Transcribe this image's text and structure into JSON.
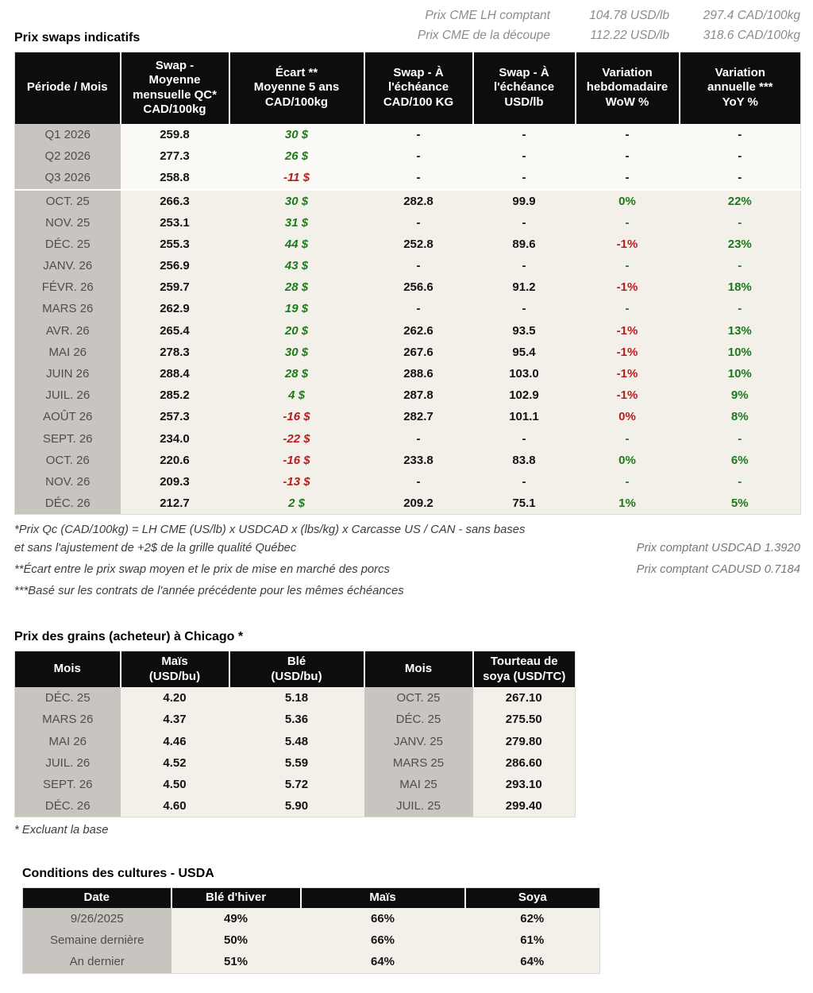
{
  "colors": {
    "green": "#1c7a1c",
    "red": "#b81d1d",
    "header_bg": "#0d0d0d",
    "header_fg": "#ffffff",
    "label_bg": "#c8c5c0",
    "label_fg": "#4e4e4e",
    "cell_bg": "#f3f0ea",
    "cell_bg_quarter": "#faf9f6",
    "muted": "#8c8c8c",
    "note": "#3c3c3c"
  },
  "cme_header": {
    "lines": [
      {
        "label": "Prix CME LH comptant",
        "usd": "104.78 USD/lb",
        "cad": "297.4 CAD/100kg"
      },
      {
        "label": "Prix CME de la découpe",
        "usd": "112.22 USD/lb",
        "cad": "318.6 CAD/100kg"
      }
    ]
  },
  "swaps": {
    "title": "Prix swaps indicatifs",
    "columns": [
      "Période / Mois",
      "Swap -\nMoyenne\nmensuelle QC*\nCAD/100kg",
      "Écart **\nMoyenne 5 ans\nCAD/100kg",
      "Swap - À\nl'échéance\nCAD/100 KG",
      "Swap - À\nl'échéance\nUSD/lb",
      "Variation\nhebdomadaire\nWoW %",
      "Variation\nannuelle ***\nYoY %"
    ],
    "rows": [
      {
        "period": "Q1 2026",
        "swap_avg": "259.8",
        "ecart": "30 $",
        "ecart_c": "g",
        "m_cad": "-",
        "m_usd": "-",
        "wow": "-",
        "wow_c": "",
        "yoy": "-",
        "yoy_c": "",
        "group": "quarter"
      },
      {
        "period": "Q2 2026",
        "swap_avg": "277.3",
        "ecart": "26 $",
        "ecart_c": "g",
        "m_cad": "-",
        "m_usd": "-",
        "wow": "-",
        "wow_c": "",
        "yoy": "-",
        "yoy_c": "",
        "group": "quarter"
      },
      {
        "period": "Q3 2026",
        "swap_avg": "258.8",
        "ecart": "-11 $",
        "ecart_c": "r",
        "m_cad": "-",
        "m_usd": "-",
        "wow": "-",
        "wow_c": "",
        "yoy": "-",
        "yoy_c": "",
        "group": "quarter"
      },
      {
        "period": "OCT. 25",
        "swap_avg": "266.3",
        "ecart": "30 $",
        "ecart_c": "g",
        "m_cad": "282.8",
        "m_usd": "99.9",
        "wow": "0%",
        "wow_c": "g",
        "yoy": "22%",
        "yoy_c": "g",
        "group": "month"
      },
      {
        "period": "NOV. 25",
        "swap_avg": "253.1",
        "ecart": "31 $",
        "ecart_c": "g",
        "m_cad": "-",
        "m_usd": "-",
        "wow": "-",
        "wow_c": "g",
        "yoy": "-",
        "yoy_c": "g",
        "group": "month"
      },
      {
        "period": "DÉC. 25",
        "swap_avg": "255.3",
        "ecart": "44 $",
        "ecart_c": "g",
        "m_cad": "252.8",
        "m_usd": "89.6",
        "wow": "-1%",
        "wow_c": "r",
        "yoy": "23%",
        "yoy_c": "g",
        "group": "month"
      },
      {
        "period": "JANV. 26",
        "swap_avg": "256.9",
        "ecart": "43 $",
        "ecart_c": "g",
        "m_cad": "-",
        "m_usd": "-",
        "wow": "-",
        "wow_c": "g",
        "yoy": "-",
        "yoy_c": "g",
        "group": "month"
      },
      {
        "period": "FÉVR. 26",
        "swap_avg": "259.7",
        "ecart": "28 $",
        "ecart_c": "g",
        "m_cad": "256.6",
        "m_usd": "91.2",
        "wow": "-1%",
        "wow_c": "r",
        "yoy": "18%",
        "yoy_c": "g",
        "group": "month"
      },
      {
        "period": "MARS 26",
        "swap_avg": "262.9",
        "ecart": "19 $",
        "ecart_c": "g",
        "m_cad": "-",
        "m_usd": "-",
        "wow": "-",
        "wow_c": "g",
        "yoy": "-",
        "yoy_c": "g",
        "group": "month"
      },
      {
        "period": "AVR. 26",
        "swap_avg": "265.4",
        "ecart": "20 $",
        "ecart_c": "g",
        "m_cad": "262.6",
        "m_usd": "93.5",
        "wow": "-1%",
        "wow_c": "r",
        "yoy": "13%",
        "yoy_c": "g",
        "group": "month"
      },
      {
        "period": "MAI 26",
        "swap_avg": "278.3",
        "ecart": "30 $",
        "ecart_c": "g",
        "m_cad": "267.6",
        "m_usd": "95.4",
        "wow": "-1%",
        "wow_c": "r",
        "yoy": "10%",
        "yoy_c": "g",
        "group": "month"
      },
      {
        "period": "JUIN 26",
        "swap_avg": "288.4",
        "ecart": "28 $",
        "ecart_c": "g",
        "m_cad": "288.6",
        "m_usd": "103.0",
        "wow": "-1%",
        "wow_c": "r",
        "yoy": "10%",
        "yoy_c": "g",
        "group": "month"
      },
      {
        "period": "JUIL. 26",
        "swap_avg": "285.2",
        "ecart": "4 $",
        "ecart_c": "g",
        "m_cad": "287.8",
        "m_usd": "102.9",
        "wow": "-1%",
        "wow_c": "r",
        "yoy": "9%",
        "yoy_c": "g",
        "group": "month"
      },
      {
        "period": "AOÛT 26",
        "swap_avg": "257.3",
        "ecart": "-16 $",
        "ecart_c": "r",
        "m_cad": "282.7",
        "m_usd": "101.1",
        "wow": "0%",
        "wow_c": "r",
        "yoy": "8%",
        "yoy_c": "g",
        "group": "month"
      },
      {
        "period": "SEPT. 26",
        "swap_avg": "234.0",
        "ecart": "-22 $",
        "ecart_c": "r",
        "m_cad": "-",
        "m_usd": "-",
        "wow": "-",
        "wow_c": "g",
        "yoy": "-",
        "yoy_c": "g",
        "group": "month"
      },
      {
        "period": "OCT. 26",
        "swap_avg": "220.6",
        "ecart": "-16 $",
        "ecart_c": "r",
        "m_cad": "233.8",
        "m_usd": "83.8",
        "wow": "0%",
        "wow_c": "g",
        "yoy": "6%",
        "yoy_c": "g",
        "group": "month"
      },
      {
        "period": "NOV. 26",
        "swap_avg": "209.3",
        "ecart": "-13 $",
        "ecart_c": "r",
        "m_cad": "-",
        "m_usd": "-",
        "wow": "-",
        "wow_c": "g",
        "yoy": "-",
        "yoy_c": "g",
        "group": "month"
      },
      {
        "period": "DÉC. 26",
        "swap_avg": "212.7",
        "ecart": "2 $",
        "ecart_c": "g",
        "m_cad": "209.2",
        "m_usd": "75.1",
        "wow": "1%",
        "wow_c": "g",
        "yoy": "5%",
        "yoy_c": "g",
        "group": "month"
      }
    ],
    "footnotes": [
      "*Prix Qc (CAD/100kg) = LH CME (US/lb) x USDCAD x (lbs/kg) x Carcasse US / CAN - sans bases\net sans l'ajustement de +2$ de la grille qualité Québec",
      "**Écart entre le prix swap moyen et le prix de mise en marché des porcs",
      "***Basé sur les contrats de l'année précédente pour les mêmes échéances"
    ],
    "spot_rates": [
      "Prix comptant USDCAD 1.3920",
      "Prix comptant CADUSD 0.7184"
    ]
  },
  "grains": {
    "title": "Prix des grains (acheteur) à Chicago *",
    "columns": [
      "Mois",
      "Maïs\n(USD/bu)",
      "Blé\n(USD/bu)",
      "Mois",
      "Tourteau de\nsoya (USD/TC)"
    ],
    "rows": [
      [
        "DÉC. 25",
        "4.20",
        "5.18",
        "OCT. 25",
        "267.10"
      ],
      [
        "MARS 26",
        "4.37",
        "5.36",
        "DÉC. 25",
        "275.50"
      ],
      [
        "MAI 26",
        "4.46",
        "5.48",
        "JANV. 25",
        "279.80"
      ],
      [
        "JUIL. 26",
        "4.52",
        "5.59",
        "MARS 25",
        "286.60"
      ],
      [
        "SEPT. 26",
        "4.50",
        "5.72",
        "MAI 25",
        "293.10"
      ],
      [
        "DÉC. 26",
        "4.60",
        "5.90",
        "JUIL. 25",
        "299.40"
      ]
    ],
    "footnote": "* Excluant la base"
  },
  "crops": {
    "title": "Conditions des cultures - USDA",
    "columns": [
      "Date",
      "Blé d'hiver",
      "Maïs",
      "Soya"
    ],
    "rows": [
      [
        "9/26/2025",
        "49%",
        "66%",
        "62%"
      ],
      [
        "Semaine dernière",
        "50%",
        "66%",
        "61%"
      ],
      [
        "An dernier",
        "51%",
        "64%",
        "64%"
      ]
    ]
  }
}
